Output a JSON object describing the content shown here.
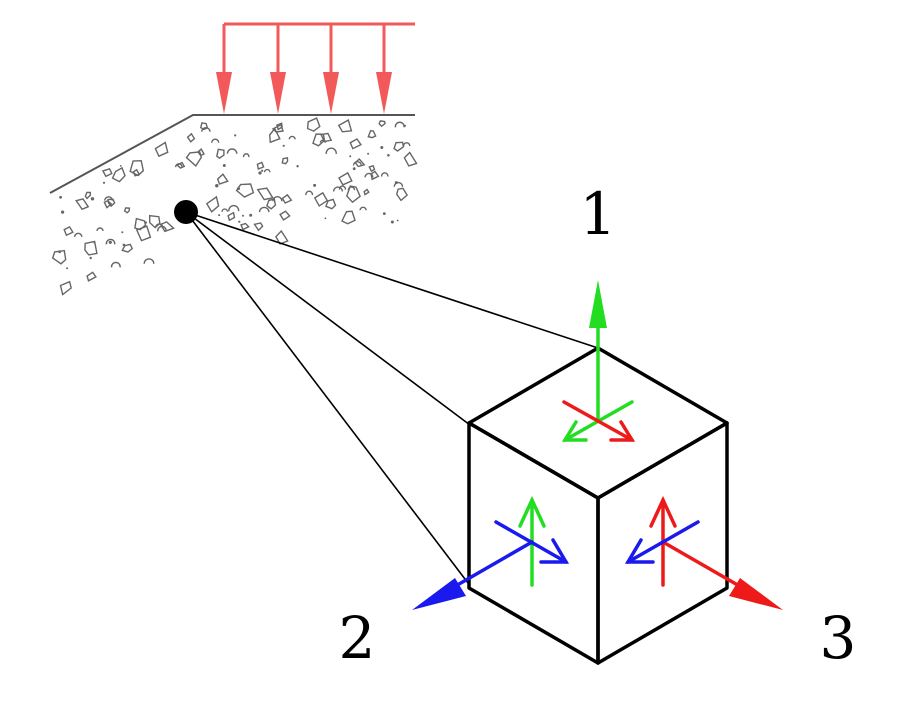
{
  "axis_labels": {
    "axis_1": "1",
    "axis_2": "2",
    "axis_3": "3"
  },
  "colors": {
    "load": "#f25a5a",
    "axis_1": "#22dd22",
    "axis_2": "#1a1aee",
    "axis_3": "#ee1a1a",
    "outline": "#000000",
    "soil": "#555555"
  }
}
